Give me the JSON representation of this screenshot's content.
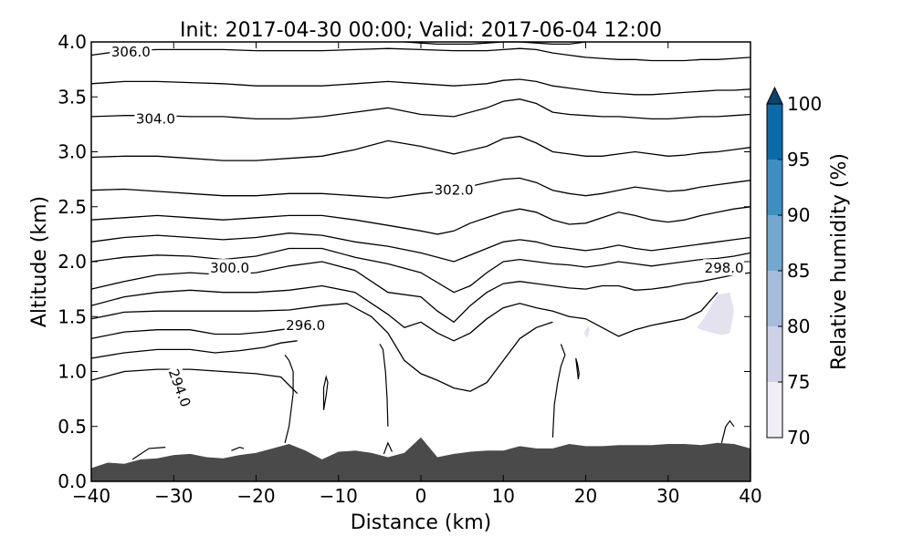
{
  "chart_data": {
    "type": "cross-section",
    "title": "Init: 2017-04-30 00:00; Valid: 2017-06-04 12:00",
    "xlabel": "Distance (km)",
    "ylabel": "Altitude (km)",
    "xlim": [
      -40,
      40
    ],
    "ylim": [
      0.0,
      4.0
    ],
    "xticks": [
      -40,
      -30,
      -20,
      -10,
      0,
      10,
      20,
      30,
      40
    ],
    "xtick_labels": [
      "−40",
      "−30",
      "−20",
      "−10",
      "0",
      "10",
      "20",
      "30",
      "40"
    ],
    "yticks": [
      0.0,
      0.5,
      1.0,
      1.5,
      2.0,
      2.5,
      3.0,
      3.5,
      4.0
    ],
    "ytick_labels": [
      "0.0",
      "0.5",
      "1.0",
      "1.5",
      "2.0",
      "2.5",
      "3.0",
      "3.5",
      "4.0"
    ],
    "grid": false,
    "terrain": {
      "x": [
        -40,
        -38,
        -36,
        -34,
        -32,
        -30,
        -28,
        -26,
        -24,
        -22,
        -20,
        -18,
        -16,
        -14,
        -12,
        -10,
        -8,
        -6,
        -4,
        -2,
        0,
        2,
        4,
        6,
        8,
        10,
        12,
        14,
        16,
        18,
        20,
        22,
        24,
        26,
        28,
        30,
        32,
        34,
        36,
        38,
        40
      ],
      "y": [
        0.12,
        0.17,
        0.16,
        0.2,
        0.21,
        0.24,
        0.25,
        0.22,
        0.21,
        0.24,
        0.26,
        0.3,
        0.34,
        0.28,
        0.2,
        0.27,
        0.28,
        0.26,
        0.22,
        0.26,
        0.4,
        0.22,
        0.25,
        0.27,
        0.28,
        0.28,
        0.32,
        0.3,
        0.3,
        0.34,
        0.32,
        0.32,
        0.33,
        0.33,
        0.33,
        0.34,
        0.34,
        0.33,
        0.35,
        0.34,
        0.3
      ],
      "color": "#4a4a4a"
    },
    "theta_contours": [
      {
        "level": 294.0,
        "x": [
          -40,
          -36,
          -32,
          -28,
          -24,
          -20,
          -17,
          -15
        ],
        "y": [
          0.92,
          1.0,
          1.02,
          1.02,
          1.0,
          0.98,
          0.95,
          0.8
        ]
      },
      {
        "level": 295.0,
        "x": [
          -40,
          -36,
          -32,
          -28,
          -25,
          -22,
          -19,
          -17,
          -15
        ],
        "y": [
          1.12,
          1.17,
          1.2,
          1.2,
          1.17,
          1.19,
          1.22,
          1.26,
          1.28
        ]
      },
      {
        "level": 296.0,
        "x": [
          -40,
          -36,
          -32,
          -28,
          -25,
          -22,
          -19,
          -17,
          -15
        ],
        "y": [
          1.3,
          1.36,
          1.38,
          1.38,
          1.34,
          1.34,
          1.36,
          1.38,
          1.4
        ]
      },
      {
        "level": 297.0,
        "x": [
          -40,
          -36,
          -32,
          -28,
          -24,
          -20,
          -16,
          -12,
          -9,
          -6,
          -4,
          -2,
          0,
          2,
          4,
          6,
          8,
          10,
          12,
          14,
          16
        ],
        "y": [
          1.48,
          1.54,
          1.55,
          1.55,
          1.55,
          1.55,
          1.56,
          1.6,
          1.62,
          1.5,
          1.35,
          1.1,
          0.98,
          0.92,
          0.85,
          0.82,
          0.9,
          1.1,
          1.3,
          1.4,
          1.45
        ]
      },
      {
        "level": 298.0,
        "x": [
          -40,
          -36,
          -32,
          -28,
          -24,
          -20,
          -16,
          -12,
          -8,
          -4,
          -2,
          0,
          2,
          4,
          6,
          8,
          10,
          12,
          14,
          16,
          18,
          20,
          22,
          24,
          26,
          28,
          30,
          32,
          34,
          36
        ],
        "y": [
          1.6,
          1.68,
          1.72,
          1.74,
          1.72,
          1.72,
          1.74,
          1.78,
          1.72,
          1.52,
          1.4,
          1.45,
          1.35,
          1.28,
          1.35,
          1.48,
          1.58,
          1.62,
          1.58,
          1.55,
          1.5,
          1.48,
          1.4,
          1.32,
          1.38,
          1.42,
          1.45,
          1.48,
          1.55,
          1.72
        ]
      },
      {
        "level": 299.0,
        "x": [
          -40,
          -36,
          -32,
          -28,
          -24,
          -20,
          -16,
          -12,
          -8,
          -4,
          0,
          2,
          4,
          6,
          8,
          10,
          12,
          14,
          16,
          18,
          20,
          22,
          24,
          26,
          28,
          30,
          32,
          34,
          36,
          38,
          40
        ],
        "y": [
          1.75,
          1.82,
          1.88,
          1.9,
          1.88,
          1.9,
          1.96,
          2.0,
          1.92,
          1.72,
          1.68,
          1.55,
          1.45,
          1.6,
          1.72,
          1.8,
          1.82,
          1.8,
          1.78,
          1.76,
          1.75,
          1.78,
          1.78,
          1.74,
          1.75,
          1.77,
          1.8,
          1.82,
          1.85,
          1.88,
          1.9
        ]
      },
      {
        "level": 300.0,
        "x": [
          -40,
          -36,
          -32,
          -28,
          -24,
          -20,
          -16,
          -12,
          -8,
          -4,
          0,
          4,
          6,
          8,
          10,
          12,
          14,
          16,
          18,
          20,
          22,
          24,
          26,
          28,
          30,
          32,
          34,
          36,
          38,
          40
        ],
        "y": [
          2.0,
          2.04,
          2.06,
          2.05,
          2.02,
          2.05,
          2.12,
          2.12,
          2.04,
          1.98,
          1.9,
          1.72,
          1.78,
          1.9,
          2.0,
          2.02,
          2.0,
          1.98,
          1.97,
          1.95,
          1.97,
          2.0,
          1.98,
          1.96,
          1.98,
          2.0,
          2.02,
          2.03,
          2.05,
          2.08
        ]
      },
      {
        "level": 301.0,
        "x": [
          -40,
          -36,
          -32,
          -28,
          -24,
          -20,
          -16,
          -12,
          -8,
          -4,
          0,
          4,
          8,
          10,
          12,
          14,
          16,
          18,
          20,
          22,
          24,
          26,
          28,
          30,
          32,
          34,
          36,
          38,
          40
        ],
        "y": [
          2.18,
          2.22,
          2.24,
          2.22,
          2.2,
          2.22,
          2.26,
          2.24,
          2.18,
          2.14,
          2.08,
          2.0,
          2.12,
          2.18,
          2.2,
          2.18,
          2.14,
          2.12,
          2.1,
          2.12,
          2.15,
          2.12,
          2.1,
          2.12,
          2.14,
          2.16,
          2.18,
          2.2,
          2.22
        ]
      },
      {
        "level": 302.0,
        "x": [
          -40,
          -36,
          -32,
          -28,
          -24,
          -20,
          -16,
          -12,
          -8,
          -4,
          0,
          2,
          4,
          6,
          8,
          10,
          12,
          14,
          16,
          18,
          20,
          22,
          24,
          26,
          28,
          30,
          32,
          34,
          36,
          38,
          40
        ],
        "y": [
          2.38,
          2.4,
          2.42,
          2.4,
          2.38,
          2.4,
          2.42,
          2.42,
          2.38,
          2.33,
          2.28,
          2.25,
          2.28,
          2.35,
          2.4,
          2.45,
          2.48,
          2.45,
          2.38,
          2.34,
          2.35,
          2.4,
          2.45,
          2.42,
          2.38,
          2.36,
          2.38,
          2.42,
          2.45,
          2.48,
          2.5
        ]
      },
      {
        "level": 303.0,
        "x": [
          -40,
          -36,
          -32,
          -28,
          -24,
          -20,
          -16,
          -12,
          -8,
          -4,
          0,
          4,
          8,
          10,
          12,
          14,
          16,
          18,
          20,
          22,
          24,
          26,
          28,
          30,
          32,
          34,
          36,
          38,
          40
        ],
        "y": [
          2.65,
          2.66,
          2.64,
          2.62,
          2.6,
          2.6,
          2.62,
          2.62,
          2.6,
          2.58,
          2.62,
          2.65,
          2.72,
          2.75,
          2.76,
          2.72,
          2.65,
          2.62,
          2.6,
          2.62,
          2.65,
          2.68,
          2.66,
          2.64,
          2.65,
          2.68,
          2.7,
          2.72,
          2.74
        ]
      },
      {
        "level": 304.0,
        "x": [
          -40,
          -36,
          -32,
          -28,
          -24,
          -20,
          -16,
          -12,
          -8,
          -4,
          0,
          4,
          8,
          10,
          12,
          14,
          16,
          18,
          20,
          22,
          24,
          26,
          28,
          30,
          32,
          34,
          36,
          38,
          40
        ],
        "y": [
          2.95,
          2.96,
          2.96,
          2.94,
          2.92,
          2.92,
          2.94,
          2.96,
          3.02,
          3.1,
          3.05,
          2.98,
          3.05,
          3.12,
          3.14,
          3.08,
          3.0,
          2.98,
          2.96,
          2.96,
          2.98,
          3.0,
          2.98,
          2.96,
          2.97,
          2.99,
          3.0,
          3.02,
          3.04
        ]
      },
      {
        "level": 305.0,
        "x": [
          -40,
          -36,
          -32,
          -28,
          -24,
          -20,
          -16,
          -12,
          -8,
          -4,
          0,
          4,
          8,
          10,
          12,
          14,
          16,
          18,
          20,
          22,
          24,
          26,
          28,
          30,
          32,
          34,
          36,
          38,
          40
        ],
        "y": [
          3.32,
          3.33,
          3.33,
          3.32,
          3.32,
          3.3,
          3.3,
          3.32,
          3.36,
          3.4,
          3.34,
          3.32,
          3.4,
          3.46,
          3.48,
          3.44,
          3.36,
          3.34,
          3.33,
          3.32,
          3.32,
          3.31,
          3.3,
          3.3,
          3.31,
          3.32,
          3.32,
          3.33,
          3.34
        ]
      },
      {
        "level": 306.0,
        "x": [
          -40,
          -36,
          -32,
          -28,
          -24,
          -20,
          -16,
          -12,
          -8,
          -4,
          0,
          4,
          8,
          10,
          12,
          14,
          16,
          18,
          20,
          22,
          24,
          26,
          28,
          30,
          32,
          34,
          36,
          38,
          40
        ],
        "y": [
          3.62,
          3.64,
          3.64,
          3.63,
          3.62,
          3.6,
          3.6,
          3.6,
          3.62,
          3.64,
          3.62,
          3.6,
          3.62,
          3.65,
          3.66,
          3.64,
          3.6,
          3.58,
          3.56,
          3.54,
          3.53,
          3.52,
          3.52,
          3.53,
          3.54,
          3.55,
          3.56,
          3.56,
          3.57
        ]
      },
      {
        "level": 307.0,
        "x": [
          -40,
          -36,
          -32,
          -28,
          -24,
          -20,
          -16,
          -12,
          -8,
          -4,
          0,
          4,
          8,
          10,
          12,
          14,
          16,
          18,
          20,
          22,
          24,
          26,
          28,
          30,
          32,
          34,
          36,
          38,
          40
        ],
        "y": [
          3.88,
          3.92,
          3.93,
          3.93,
          3.93,
          3.92,
          3.92,
          3.92,
          3.93,
          3.94,
          3.93,
          3.92,
          3.92,
          3.93,
          3.94,
          3.93,
          3.9,
          3.88,
          3.86,
          3.85,
          3.84,
          3.84,
          3.83,
          3.83,
          3.83,
          3.84,
          3.84,
          3.85,
          3.86
        ]
      },
      {
        "level": 308.0,
        "x": [
          -2,
          0,
          2,
          4,
          6,
          8,
          10,
          12,
          14,
          16,
          18,
          20
        ],
        "y": [
          4.0,
          3.99,
          3.98,
          3.98,
          3.98,
          3.99,
          4.0,
          4.0,
          3.99,
          3.98,
          3.98,
          4.0
        ]
      }
    ],
    "thin_contours": [
      {
        "x": [
          -16.5,
          -16,
          -15.5,
          -15.5,
          -16,
          -16.5
        ],
        "y": [
          0.35,
          0.5,
          0.8,
          1.0,
          1.1,
          1.15
        ]
      },
      {
        "x": [
          -11.8,
          -11.5,
          -11.3,
          -11.5,
          -11.8,
          -11.8
        ],
        "y": [
          0.65,
          0.78,
          0.9,
          0.95,
          0.85,
          0.65
        ]
      },
      {
        "x": [
          -5.0,
          -4.6,
          -4.3,
          -4.1,
          -4.0
        ],
        "y": [
          1.25,
          1.2,
          1.0,
          0.75,
          0.5
        ]
      },
      {
        "x": [
          16.0,
          16.2,
          16.6,
          17.0,
          17.5,
          17.0
        ],
        "y": [
          0.4,
          0.7,
          0.9,
          1.05,
          1.15,
          1.25
        ]
      },
      {
        "x": [
          18.8,
          19.0,
          19.2,
          19.1,
          18.8
        ],
        "y": [
          1.12,
          1.07,
          0.98,
          0.93,
          1.12
        ]
      },
      {
        "x": [
          -35,
          -33,
          -31
        ],
        "y": [
          0.2,
          0.3,
          0.31
        ]
      },
      {
        "x": [
          -23,
          -22,
          -21.5
        ],
        "y": [
          0.28,
          0.31,
          0.3
        ]
      },
      {
        "x": [
          -4.5,
          -4.0,
          -3.5
        ],
        "y": [
          0.25,
          0.35,
          0.27
        ]
      },
      {
        "x": [
          36.5,
          37,
          37.5,
          38
        ],
        "y": [
          0.35,
          0.5,
          0.55,
          0.5
        ]
      }
    ],
    "contour_labels": [
      {
        "text": "306.0",
        "x": -35.2,
        "y": 3.91,
        "rotate": 0
      },
      {
        "text": "304.0",
        "x": -32.2,
        "y": 3.3,
        "rotate": 0
      },
      {
        "text": "302.0",
        "x": 4.0,
        "y": 2.65,
        "rotate": 0
      },
      {
        "text": "300.0",
        "x": -23.2,
        "y": 1.94,
        "rotate": 0
      },
      {
        "text": "298.0",
        "x": 36.8,
        "y": 1.94,
        "rotate": 0
      },
      {
        "text": "296.0",
        "x": -14.0,
        "y": 1.42,
        "rotate": 0
      },
      {
        "text": "294.0",
        "x": -29.3,
        "y": 0.85,
        "rotate": 70
      }
    ],
    "rh_patches": [
      {
        "range": [
          70,
          75
        ],
        "color": "#e4e2ef",
        "x": [
          33.5,
          34.5,
          36,
          37.5,
          38,
          37.5,
          36.5,
          35,
          34
        ],
        "y": [
          1.4,
          1.5,
          1.7,
          1.72,
          1.55,
          1.35,
          1.33,
          1.36,
          1.38
        ]
      },
      {
        "range": [
          70,
          75
        ],
        "color": "#e4e2ef",
        "x": [
          19.8,
          20.3,
          20.5,
          20.2,
          19.8
        ],
        "y": [
          1.35,
          1.42,
          1.38,
          1.3,
          1.35
        ]
      }
    ],
    "colorbar": {
      "label": "Relative humidity (%)",
      "ticks": [
        70,
        75,
        80,
        85,
        90,
        95,
        100
      ],
      "extend": "max",
      "colors": [
        "#f1eef5",
        "#cfd1e6",
        "#a5bddb",
        "#73a9cf",
        "#3e8fc0",
        "#0b6ba8",
        "#07466f"
      ]
    }
  }
}
